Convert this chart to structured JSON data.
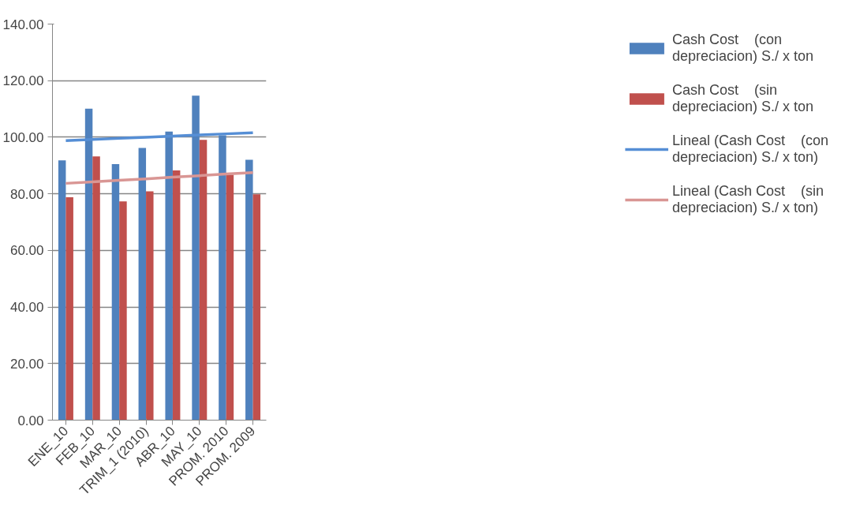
{
  "chart_data": {
    "type": "bar",
    "categories": [
      "ENE_10",
      "FEB_10",
      "MAR_10",
      "TRIM_1 (2010)",
      "ABR_10",
      "MAY_10",
      "PROM. 2010",
      "PROM. 2009"
    ],
    "series": [
      {
        "name": "Cash Cost    (con depreciacion) S./ x ton",
        "color": "#4f81bd",
        "values": [
          91.8,
          110.1,
          90.5,
          96.2,
          102.0,
          114.7,
          100.7,
          92.0
        ]
      },
      {
        "name": "Cash Cost    (sin depreciacion) S./ x ton",
        "color": "#c0504d",
        "values": [
          78.8,
          93.2,
          77.3,
          80.9,
          88.3,
          99.1,
          86.7,
          79.8
        ]
      },
      {
        "name": "Lineal (Cash Cost    (con depreciacion) S./ x ton)",
        "type": "line",
        "color": "#558ed5",
        "values": [
          98.8,
          99.2,
          99.6,
          100.0,
          100.4,
          100.8,
          101.2,
          101.6
        ]
      },
      {
        "name": "Lineal (Cash Cost    (sin depreciacion) S./ x ton)",
        "type": "line",
        "color": "#d99694",
        "values": [
          83.7,
          84.2,
          84.8,
          85.3,
          85.9,
          86.4,
          87.0,
          87.5
        ]
      }
    ],
    "ylim": [
      0,
      140
    ],
    "yticks": [
      {
        "value": 0,
        "label": "0.00"
      },
      {
        "value": 20,
        "label": "20.00"
      },
      {
        "value": 40,
        "label": "40.00"
      },
      {
        "value": 60,
        "label": "60.00"
      },
      {
        "value": 80,
        "label": "80.00"
      },
      {
        "value": 100,
        "label": "100.00"
      },
      {
        "value": 120,
        "label": "120.00"
      },
      {
        "value": 140,
        "label": "140.00"
      }
    ],
    "grid": "y",
    "legend": "right",
    "marker": "none",
    "line_style": "solid"
  }
}
